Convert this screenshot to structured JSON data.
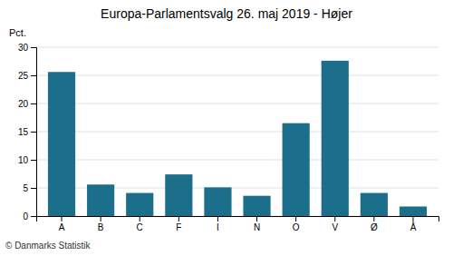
{
  "chart_data": {
    "type": "bar",
    "title": "Europa-Parlamentsvalg 26. maj 2019 - Højer",
    "categories": [
      "A",
      "B",
      "C",
      "F",
      "I",
      "N",
      "O",
      "V",
      "Ø",
      "Å"
    ],
    "values": [
      25.6,
      5.6,
      4.1,
      7.4,
      5.1,
      3.6,
      16.5,
      27.6,
      4.1,
      1.7
    ],
    "color": "#1b6f8a",
    "ylabel": "Pct.",
    "ylim": [
      0,
      30
    ],
    "yticks": [
      0,
      5,
      10,
      15,
      20,
      25,
      30
    ],
    "grid": true,
    "annotations": [
      "© Danmarks Statistik"
    ]
  }
}
